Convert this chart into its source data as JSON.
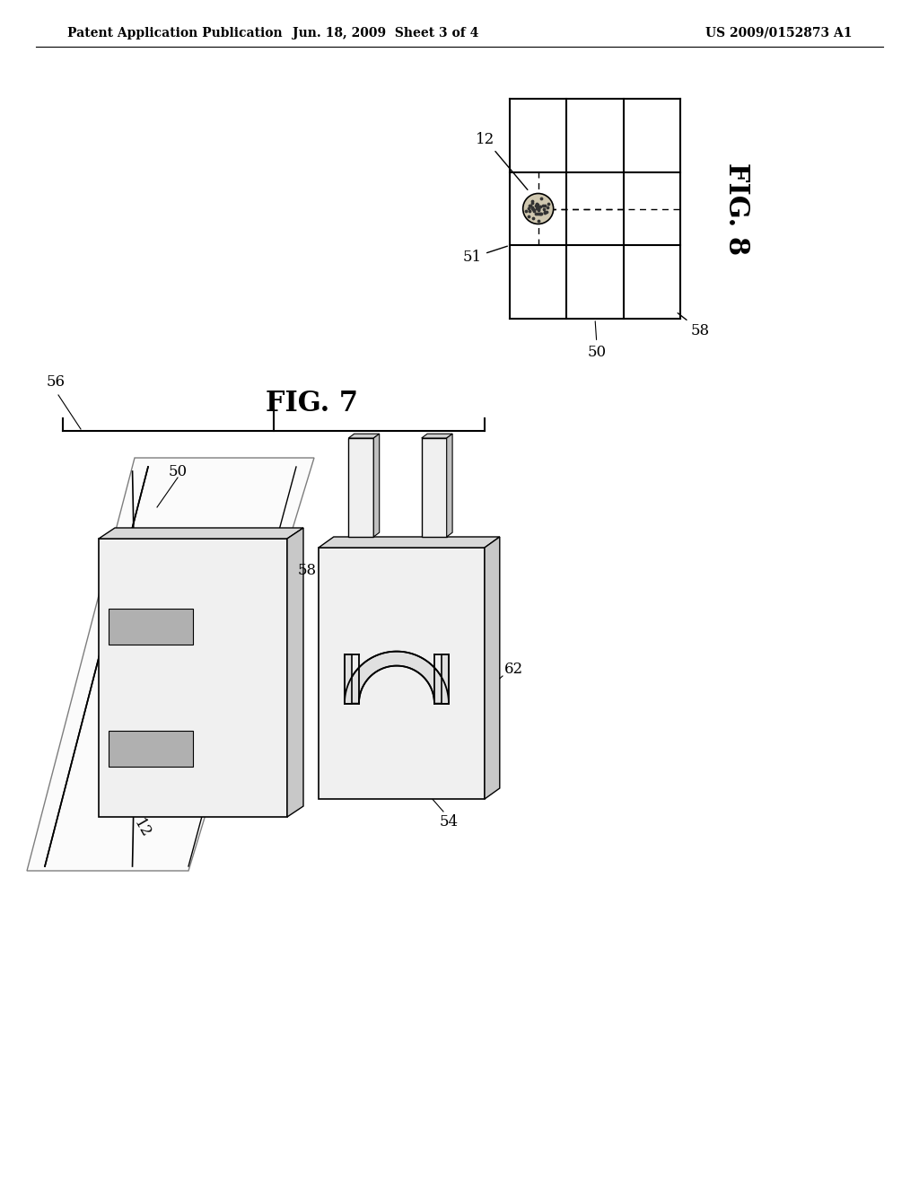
{
  "background_color": "#ffffff",
  "header_left": "Patent Application Publication",
  "header_center": "Jun. 18, 2009  Sheet 3 of 4",
  "header_right": "US 2009/0152873 A1",
  "fig8_label": "FIG. 8",
  "fig7_label": "FIG. 7"
}
